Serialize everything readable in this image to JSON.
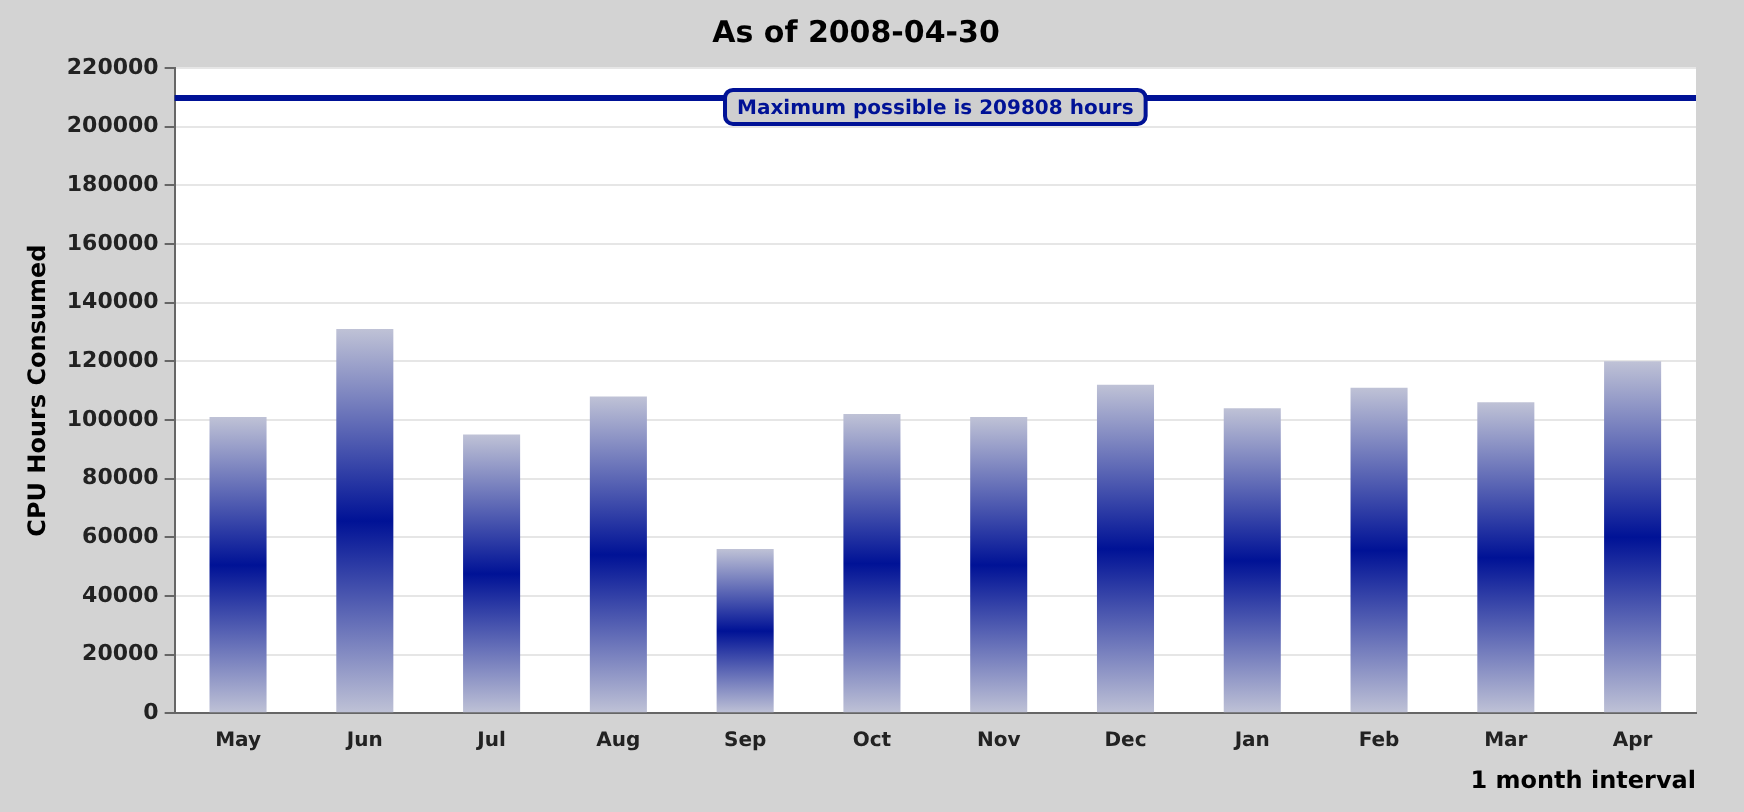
{
  "chart_data": {
    "type": "bar",
    "title": "As of 2008-04-30",
    "xlabel": "1 month interval",
    "ylabel": "CPU Hours Consumed",
    "categories": [
      "May",
      "Jun",
      "Jul",
      "Aug",
      "Sep",
      "Oct",
      "Nov",
      "Dec",
      "Jan",
      "Feb",
      "Mar",
      "Apr"
    ],
    "values": [
      101000,
      131000,
      95000,
      108000,
      56000,
      102000,
      101000,
      112000,
      104000,
      111000,
      106000,
      120000
    ],
    "color": "#001296",
    "ylim": [
      0,
      220000
    ],
    "yticks": [
      0,
      20000,
      40000,
      60000,
      80000,
      100000,
      120000,
      140000,
      160000,
      180000,
      200000,
      220000
    ],
    "grid": "y",
    "ref_lines": [
      {
        "axis": "y",
        "value": 209808,
        "label": "Maximum possible is 209808 hours",
        "color": "#001296"
      }
    ]
  }
}
